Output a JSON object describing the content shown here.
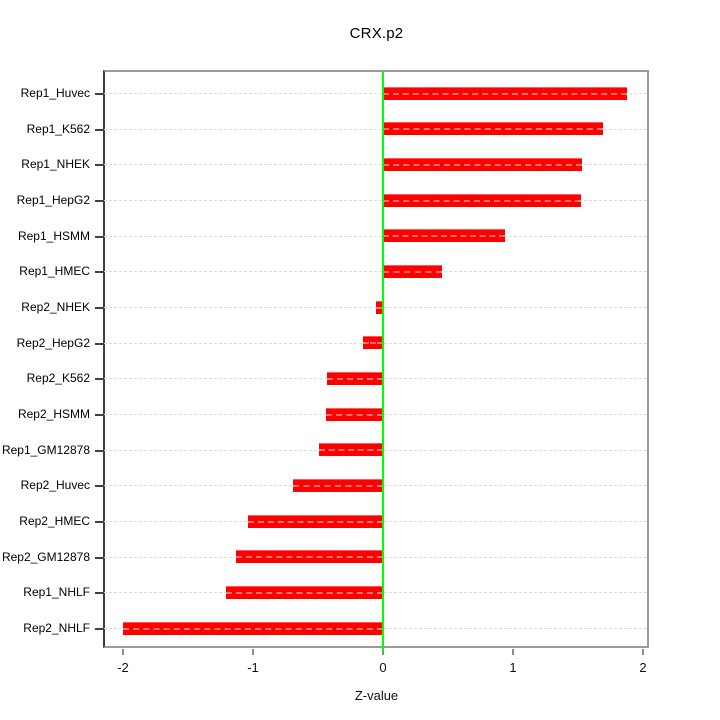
{
  "chart_data": {
    "type": "bar",
    "orientation": "horizontal",
    "title": "CRX.p2",
    "xlabel": "Z-value",
    "ylabel": "",
    "categories": [
      "Rep1_Huvec",
      "Rep1_K562",
      "Rep1_NHEK",
      "Rep1_HepG2",
      "Rep1_HSMM",
      "Rep1_HMEC",
      "Rep2_NHEK",
      "Rep2_HepG2",
      "Rep2_K562",
      "Rep2_HSMM",
      "Rep1_GM12878",
      "Rep2_Huvec",
      "Rep2_HMEC",
      "Rep2_GM12878",
      "Rep1_NHLF",
      "Rep2_NHLF"
    ],
    "values": [
      1.88,
      1.69,
      1.53,
      1.52,
      0.94,
      0.45,
      -0.05,
      -0.15,
      -0.43,
      -0.44,
      -0.49,
      -0.69,
      -1.04,
      -1.13,
      -1.21,
      -2.0
    ],
    "xticks": [
      -2,
      -1,
      0,
      1,
      2
    ],
    "xtick_labels": [
      "-2",
      "-1",
      "0",
      "1",
      "2"
    ],
    "xlim": [
      -2.15,
      2.05
    ],
    "grid": "horizontal dashed line per category",
    "legend": "none",
    "colors": {
      "bar": "#ff0000",
      "zero_line": "#00ff00",
      "grid": "#dcdcdc",
      "box_border": "#9a9a9a",
      "axis": "#404040",
      "text": "#000000"
    }
  }
}
